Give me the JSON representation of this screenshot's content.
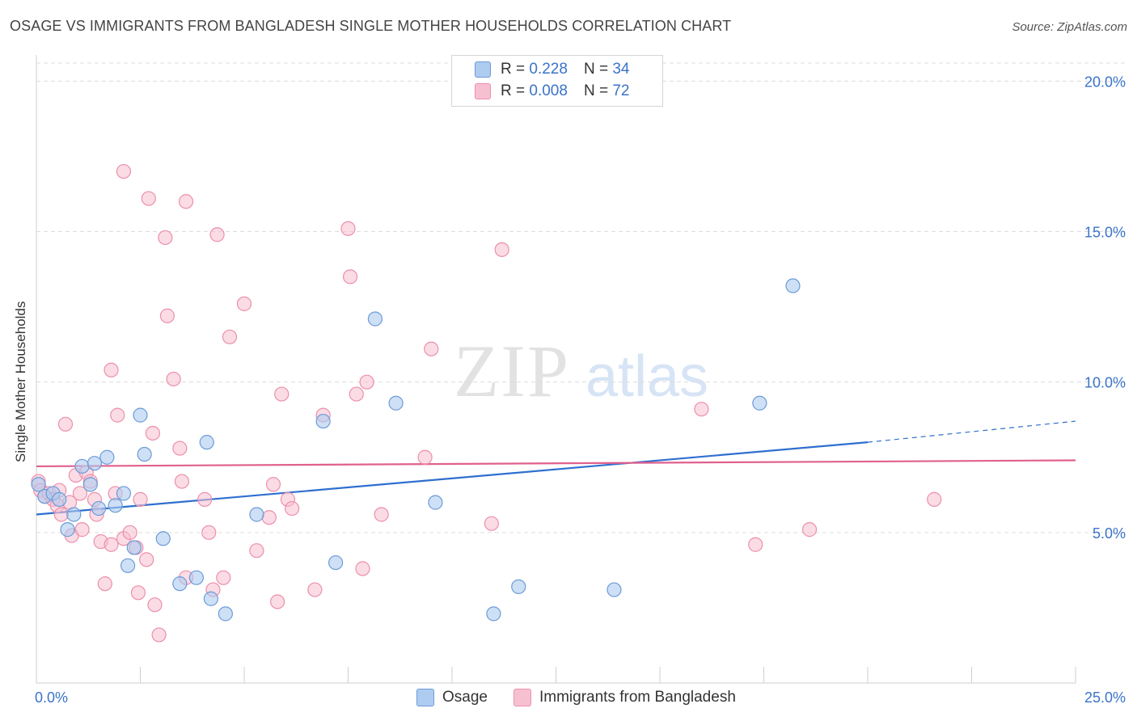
{
  "title": "OSAGE VS IMMIGRANTS FROM BANGLADESH SINGLE MOTHER HOUSEHOLDS CORRELATION CHART",
  "source": "Source: ZipAtlas.com",
  "watermark": {
    "zip": "ZIP",
    "atlas": "atlas"
  },
  "legend": {
    "rows": [
      {
        "r_label": "R =",
        "r_value": "0.228",
        "n_label": "N =",
        "n_value": "34"
      },
      {
        "r_label": "R =",
        "r_value": "0.008",
        "n_label": "N =",
        "n_value": "72"
      }
    ]
  },
  "colors": {
    "osage_fill": "#aecbf0",
    "osage_stroke": "#6c9bd8",
    "osage_line": "#2f6fcf",
    "bangladesh_fill": "#f7c0d0",
    "bangladesh_stroke": "#ec8fab",
    "bangladesh_line": "#e0608e",
    "grid": "#dcdcdc",
    "axis_text": "#3b73c8"
  },
  "chart_data": {
    "type": "scatter",
    "title": "OSAGE VS IMMIGRANTS FROM BANGLADESH SINGLE MOTHER HOUSEHOLDS CORRELATION CHART",
    "xlabel": "",
    "ylabel": "Single Mother Households",
    "xlim": [
      0,
      25
    ],
    "ylim": [
      0,
      20.6
    ],
    "x_tick_labels": [
      "0.0%",
      "25.0%"
    ],
    "y_ticks": [
      5,
      10,
      15,
      20
    ],
    "y_tick_labels": [
      "5.0%",
      "10.0%",
      "15.0%",
      "20.0%"
    ],
    "grid": true,
    "legend_position": "top-center",
    "series": [
      {
        "name": "Osage",
        "points": [
          [
            0.05,
            6.6
          ],
          [
            0.2,
            6.2
          ],
          [
            0.4,
            6.3
          ],
          [
            0.55,
            6.1
          ],
          [
            0.75,
            5.1
          ],
          [
            0.9,
            5.6
          ],
          [
            1.1,
            7.2
          ],
          [
            1.3,
            6.6
          ],
          [
            1.4,
            7.3
          ],
          [
            1.5,
            5.8
          ],
          [
            1.7,
            7.5
          ],
          [
            1.9,
            5.9
          ],
          [
            2.1,
            6.3
          ],
          [
            2.2,
            3.9
          ],
          [
            2.35,
            4.5
          ],
          [
            2.5,
            8.9
          ],
          [
            2.6,
            7.6
          ],
          [
            3.05,
            4.8
          ],
          [
            3.45,
            3.3
          ],
          [
            3.85,
            3.5
          ],
          [
            4.1,
            8.0
          ],
          [
            4.2,
            2.8
          ],
          [
            4.55,
            2.3
          ],
          [
            5.3,
            5.6
          ],
          [
            6.9,
            8.7
          ],
          [
            7.2,
            4.0
          ],
          [
            8.15,
            12.1
          ],
          [
            8.65,
            9.3
          ],
          [
            9.6,
            6.0
          ],
          [
            11.0,
            2.3
          ],
          [
            11.6,
            3.2
          ],
          [
            13.9,
            3.1
          ],
          [
            17.4,
            9.3
          ],
          [
            18.2,
            13.2
          ]
        ],
        "trend": {
          "x": [
            0,
            20
          ],
          "y": [
            5.6,
            8.0
          ],
          "dashed_to": [
            25,
            8.7
          ]
        }
      },
      {
        "name": "Immigrants from Bangladesh",
        "points": [
          [
            0.05,
            6.7
          ],
          [
            0.1,
            6.4
          ],
          [
            0.2,
            6.2
          ],
          [
            0.3,
            6.3
          ],
          [
            0.4,
            6.1
          ],
          [
            0.5,
            5.9
          ],
          [
            0.55,
            6.4
          ],
          [
            0.6,
            5.6
          ],
          [
            0.7,
            8.6
          ],
          [
            0.8,
            6.0
          ],
          [
            0.85,
            4.9
          ],
          [
            0.95,
            6.9
          ],
          [
            1.05,
            6.3
          ],
          [
            1.1,
            5.1
          ],
          [
            1.2,
            7.0
          ],
          [
            1.3,
            6.7
          ],
          [
            1.4,
            6.1
          ],
          [
            1.45,
            5.6
          ],
          [
            1.55,
            4.7
          ],
          [
            1.65,
            3.3
          ],
          [
            1.8,
            4.6
          ],
          [
            1.8,
            10.4
          ],
          [
            1.9,
            6.3
          ],
          [
            1.95,
            8.9
          ],
          [
            2.1,
            4.8
          ],
          [
            2.1,
            17.0
          ],
          [
            2.25,
            5.0
          ],
          [
            2.4,
            4.5
          ],
          [
            2.45,
            3.0
          ],
          [
            2.5,
            6.1
          ],
          [
            2.65,
            4.1
          ],
          [
            2.7,
            16.1
          ],
          [
            2.8,
            8.3
          ],
          [
            2.85,
            2.6
          ],
          [
            2.95,
            1.6
          ],
          [
            3.1,
            14.8
          ],
          [
            3.15,
            12.2
          ],
          [
            3.3,
            10.1
          ],
          [
            3.45,
            7.8
          ],
          [
            3.5,
            6.7
          ],
          [
            3.6,
            3.5
          ],
          [
            3.6,
            16.0
          ],
          [
            4.05,
            6.1
          ],
          [
            4.15,
            5.0
          ],
          [
            4.25,
            3.1
          ],
          [
            4.35,
            14.9
          ],
          [
            4.5,
            3.5
          ],
          [
            4.65,
            11.5
          ],
          [
            5.0,
            12.6
          ],
          [
            5.3,
            4.4
          ],
          [
            5.6,
            5.5
          ],
          [
            5.7,
            6.6
          ],
          [
            5.8,
            2.7
          ],
          [
            5.9,
            9.6
          ],
          [
            6.05,
            6.1
          ],
          [
            6.15,
            5.8
          ],
          [
            6.7,
            3.1
          ],
          [
            6.9,
            8.9
          ],
          [
            7.5,
            15.1
          ],
          [
            7.55,
            13.5
          ],
          [
            7.7,
            9.6
          ],
          [
            7.85,
            3.8
          ],
          [
            7.95,
            10.0
          ],
          [
            8.3,
            5.6
          ],
          [
            9.35,
            7.5
          ],
          [
            9.5,
            11.1
          ],
          [
            10.95,
            5.3
          ],
          [
            11.2,
            14.4
          ],
          [
            16.0,
            9.1
          ],
          [
            17.3,
            4.6
          ],
          [
            18.6,
            5.1
          ],
          [
            21.6,
            6.1
          ]
        ],
        "trend": {
          "x": [
            0,
            25
          ],
          "y": [
            7.2,
            7.4
          ]
        }
      }
    ]
  }
}
